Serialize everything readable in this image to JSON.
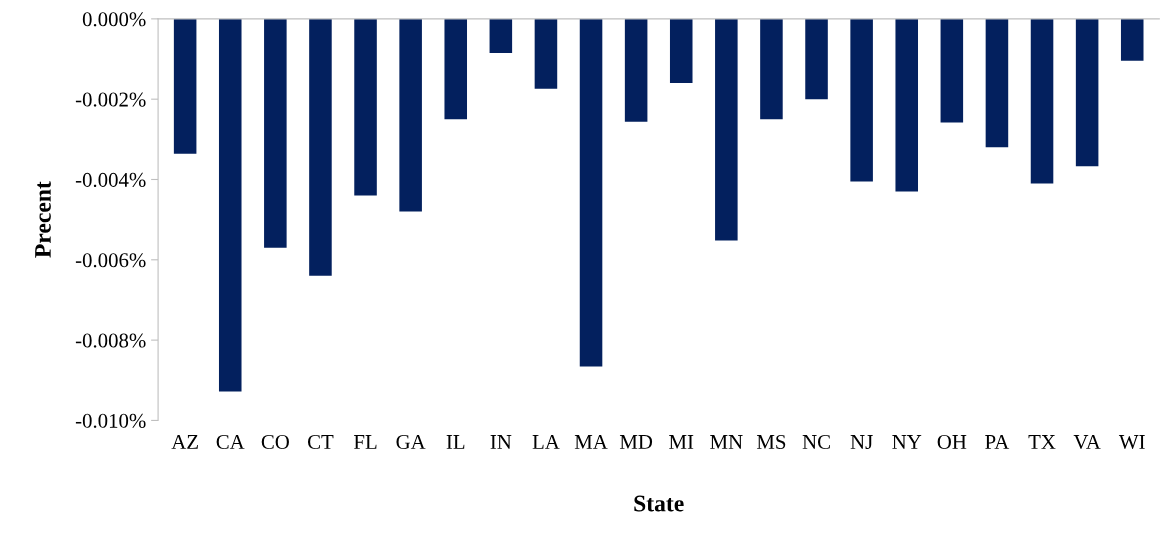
{
  "chart_data": {
    "type": "bar",
    "xlabel": "State",
    "ylabel": "Precent",
    "categories": [
      "AZ",
      "CA",
      "CO",
      "CT",
      "FL",
      "GA",
      "IL",
      "IN",
      "LA",
      "MA",
      "MD",
      "MI",
      "MN",
      "MS",
      "NC",
      "NJ",
      "NY",
      "OH",
      "PA",
      "TX",
      "VA",
      "WI"
    ],
    "values": [
      -0.00336,
      -0.00928,
      -0.0057,
      -0.0064,
      -0.0044,
      -0.0048,
      -0.0025,
      -0.00085,
      -0.00174,
      -0.00866,
      -0.00256,
      -0.0016,
      -0.00552,
      -0.0025,
      -0.002,
      -0.00405,
      -0.0043,
      -0.00258,
      -0.0032,
      -0.0041,
      -0.00367,
      -0.00104
    ],
    "color": "#03205e",
    "ylim": [
      -0.01,
      0
    ],
    "yticks": [
      {
        "value": 0,
        "label": "0.000%"
      },
      {
        "value": -0.002,
        "label": "-0.002%"
      },
      {
        "value": -0.004,
        "label": "-0.004%"
      },
      {
        "value": -0.006,
        "label": "-0.006%"
      },
      {
        "value": -0.008,
        "label": "-0.008%"
      },
      {
        "value": -0.01,
        "label": "-0.010%"
      }
    ],
    "grid": false,
    "legend": false
  }
}
